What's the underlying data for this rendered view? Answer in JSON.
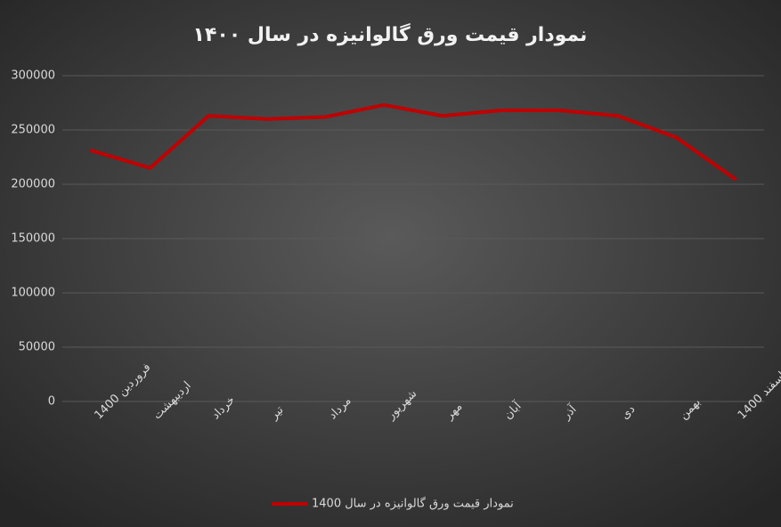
{
  "chart_data": {
    "type": "line",
    "title": "نمودار قیمت ورق گالوانیزه در سال ۱۴۰۰",
    "categories": [
      "فروردین 1400",
      "اردیبهشت",
      "خرداد",
      "تیر",
      "مرداد",
      "شهریور",
      "مهر",
      "آبان",
      "آذر",
      "دی",
      "بهمن",
      "اسفند 1400"
    ],
    "series": [
      {
        "name": "نمودار قیمت ورق گالوانیزه در سال 1400",
        "color": "#c00000",
        "values": [
          231000,
          215000,
          263000,
          260000,
          262000,
          273000,
          263000,
          268000,
          268000,
          263000,
          243000,
          205000
        ]
      }
    ],
    "ylim": [
      0,
      300000
    ],
    "yticks": [
      0,
      50000,
      100000,
      150000,
      200000,
      250000,
      300000
    ],
    "grid": true,
    "legend": "bottom"
  }
}
